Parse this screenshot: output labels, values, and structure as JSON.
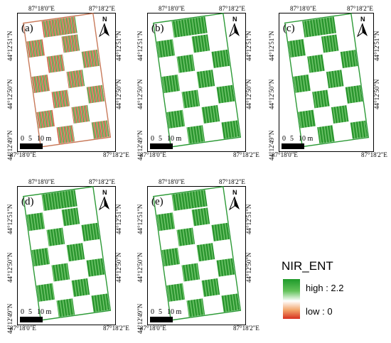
{
  "coords": {
    "lon_left": "87°18'0\"E",
    "lon_right": "87°18'2\"E",
    "lat_top": "44°12'51\"N",
    "lat_mid": "44°12'50\"N",
    "lat_bottom": "44°12'49\"N"
  },
  "north_label": "N",
  "scale_labels": [
    "0",
    "5",
    "10 m"
  ],
  "panels": [
    {
      "letter": "(a)",
      "style": "mixed"
    },
    {
      "letter": "(b)",
      "style": "green"
    },
    {
      "letter": "(c)",
      "style": "green"
    },
    {
      "letter": "(d)",
      "style": "green"
    },
    {
      "letter": "(e)",
      "style": "green"
    }
  ],
  "legend": {
    "title": "NIR_ENT",
    "high_label": "high : 2.2",
    "low_label": "low : 0",
    "colors": {
      "high": "#1e9a2a",
      "mid": "#ffffff",
      "low": "#d7301f"
    }
  }
}
